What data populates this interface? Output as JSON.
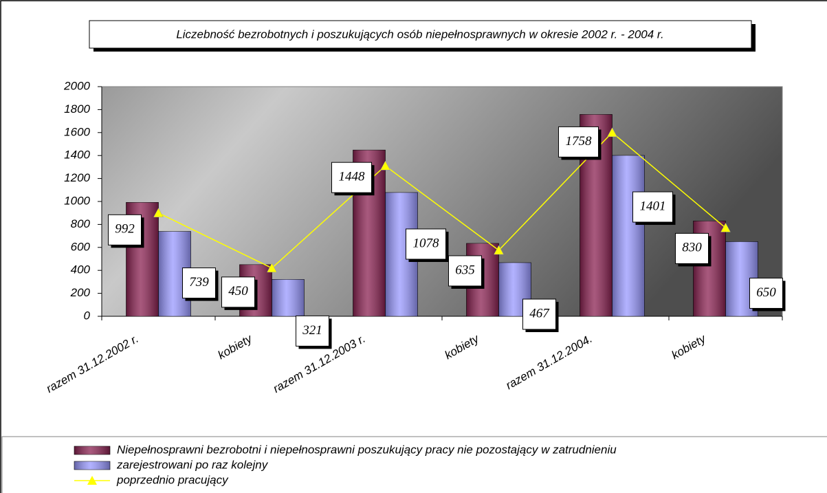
{
  "chart_data": {
    "type": "bar",
    "title": "Liczebność bezrobotnych i poszukujących osób niepełnosprawnych w okresie 2002 r. - 2004 r.",
    "categories": [
      "razem  31.12.2002 r.",
      "kobiety",
      "razem  31.12.2003 r.",
      "kobiety",
      "razem  31.12.2004.",
      "kobiety"
    ],
    "series": [
      {
        "name": "Niepełnosprawni bezrobotni i niepełnosprawni poszukujący pracy nie pozostający w zatrudnieniu",
        "color": "#8b2252",
        "type": "bar",
        "values": [
          992,
          450,
          1448,
          635,
          1758,
          830
        ]
      },
      {
        "name": "zarejestrowani po raz kolejny",
        "color": "#9999ff",
        "type": "bar",
        "values": [
          739,
          321,
          1078,
          467,
          1401,
          650
        ]
      },
      {
        "name": "poprzednio pracujący",
        "color": "#ffff00",
        "type": "line",
        "values": [
          900,
          420,
          1310,
          575,
          1600,
          770
        ]
      }
    ],
    "ylim": [
      0,
      2000
    ],
    "yticks": [
      0,
      200,
      400,
      600,
      800,
      1000,
      1200,
      1400,
      1600,
      1800,
      2000
    ],
    "legend": "bottom"
  }
}
